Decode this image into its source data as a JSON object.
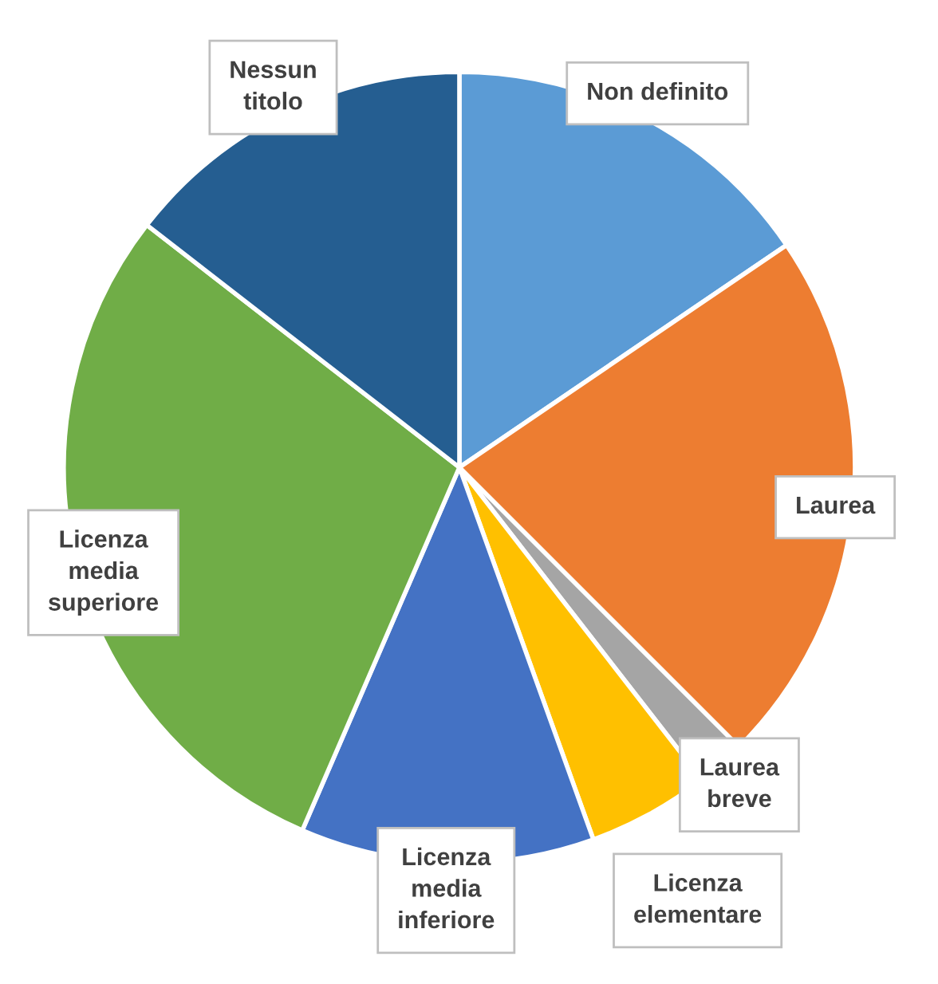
{
  "chart_data": {
    "type": "pie",
    "categories": [
      "Non definito",
      "Laurea",
      "Laurea\nbreve",
      "Licenza\nelementare",
      "Licenza\nmedia\ninferiore",
      "Licenza\nmedia\nsuperiore",
      "Nessun\ntitolo"
    ],
    "values": [
      15.5,
      22,
      2,
      5,
      12,
      29,
      14.5
    ],
    "colors": [
      "#5b9bd5",
      "#ed7d31",
      "#a5a5a5",
      "#ffc000",
      "#4472c4",
      "#70ad47",
      "#255e91"
    ]
  }
}
